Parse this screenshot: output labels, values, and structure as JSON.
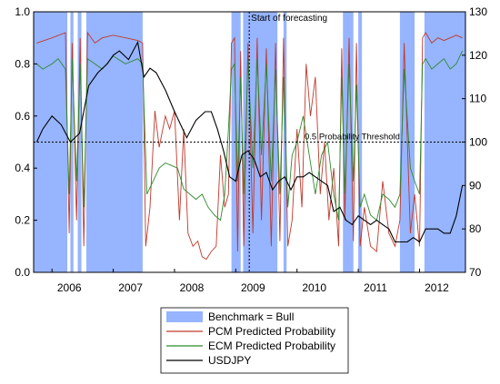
{
  "chart_data": {
    "type": "line",
    "left_axis": {
      "ylim": [
        0,
        1
      ],
      "ticks": [
        "0.0",
        "0.2",
        "0.4",
        "0.6",
        "0.8",
        "1.0"
      ]
    },
    "right_axis": {
      "ylim": [
        70,
        130
      ],
      "ticks": [
        "70",
        "80",
        "90",
        "100",
        "110",
        "120",
        "130"
      ]
    },
    "xlim": [
      2005.7,
      2012.75
    ],
    "x_ticks": [
      {
        "x": 2006.0,
        "label": "2006"
      },
      {
        "x": 2007.0,
        "label": "2007"
      },
      {
        "x": 2008.0,
        "label": "2008"
      },
      {
        "x": 2009.0,
        "label": "2009"
      },
      {
        "x": 2010.0,
        "label": "2010"
      },
      {
        "x": 2011.0,
        "label": "2011"
      },
      {
        "x": 2012.0,
        "label": "2012"
      }
    ],
    "annotations": [
      {
        "text": "Start of forecasting",
        "x": 2009.22
      },
      {
        "text": "0.5 Probability Threshold",
        "y": 0.5
      }
    ],
    "bull_periods": [
      [
        2005.7,
        2006.25
      ],
      [
        2006.3,
        2006.35
      ],
      [
        2006.42,
        2006.48
      ],
      [
        2006.56,
        2007.48
      ],
      [
        2008.93,
        2009.08
      ],
      [
        2009.12,
        2009.68
      ],
      [
        2009.78,
        2009.83
      ],
      [
        2010.75,
        2010.92
      ],
      [
        2011.0,
        2011.06
      ],
      [
        2011.68,
        2011.92
      ],
      [
        2012.08,
        2012.75
      ]
    ],
    "series": [
      {
        "name": "PCM Predicted Probability",
        "color": "#c0392b",
        "x": [
          2005.75,
          2006.0,
          2006.22,
          2006.28,
          2006.33,
          2006.4,
          2006.46,
          2006.52,
          2006.58,
          2006.7,
          2006.82,
          2007.0,
          2007.2,
          2007.4,
          2007.48,
          2007.53,
          2007.6,
          2007.68,
          2007.75,
          2007.85,
          2007.92,
          2008.0,
          2008.08,
          2008.15,
          2008.22,
          2008.3,
          2008.38,
          2008.45,
          2008.52,
          2008.6,
          2008.68,
          2008.75,
          2008.82,
          2008.88,
          2008.93,
          2008.98,
          2009.03,
          2009.08,
          2009.13,
          2009.2,
          2009.28,
          2009.35,
          2009.42,
          2009.5,
          2009.58,
          2009.65,
          2009.72,
          2009.78,
          2009.85,
          2009.92,
          2010.0,
          2010.08,
          2010.15,
          2010.22,
          2010.3,
          2010.38,
          2010.45,
          2010.52,
          2010.6,
          2010.68,
          2010.73,
          2010.78,
          2010.85,
          2010.92,
          2010.97,
          2011.03,
          2011.1,
          2011.2,
          2011.3,
          2011.4,
          2011.5,
          2011.6,
          2011.68,
          2011.75,
          2011.85,
          2011.92,
          2012.0,
          2012.05,
          2012.1,
          2012.2,
          2012.3,
          2012.4,
          2012.5,
          2012.6,
          2012.7
        ],
        "values": [
          0.88,
          0.9,
          0.92,
          0.15,
          0.88,
          0.2,
          0.9,
          0.1,
          0.92,
          0.88,
          0.9,
          0.91,
          0.9,
          0.89,
          0.88,
          0.1,
          0.25,
          0.62,
          0.48,
          0.6,
          0.55,
          0.62,
          0.2,
          0.55,
          0.15,
          0.1,
          0.12,
          0.06,
          0.05,
          0.08,
          0.1,
          0.45,
          0.25,
          0.3,
          0.88,
          0.9,
          0.08,
          0.85,
          0.1,
          0.88,
          0.15,
          0.9,
          0.2,
          0.86,
          0.1,
          0.88,
          0.12,
          0.9,
          0.1,
          0.2,
          0.55,
          0.25,
          0.8,
          0.6,
          0.75,
          0.3,
          0.5,
          0.2,
          0.4,
          0.1,
          0.86,
          0.2,
          0.9,
          0.12,
          0.88,
          0.1,
          0.25,
          0.1,
          0.08,
          0.35,
          0.15,
          0.1,
          0.2,
          0.88,
          0.15,
          0.3,
          0.1,
          0.9,
          0.92,
          0.88,
          0.9,
          0.89,
          0.9,
          0.91,
          0.9
        ]
      },
      {
        "name": "ECM Predicted Probability",
        "color": "#2e8b2e",
        "x": [
          2005.75,
          2005.85,
          2006.0,
          2006.1,
          2006.22,
          2006.28,
          2006.33,
          2006.4,
          2006.46,
          2006.52,
          2006.58,
          2006.7,
          2006.82,
          2007.0,
          2007.2,
          2007.4,
          2007.48,
          2007.55,
          2007.65,
          2007.75,
          2007.85,
          2007.95,
          2008.05,
          2008.15,
          2008.25,
          2008.35,
          2008.45,
          2008.55,
          2008.65,
          2008.75,
          2008.82,
          2008.88,
          2008.93,
          2008.98,
          2009.03,
          2009.08,
          2009.13,
          2009.2,
          2009.28,
          2009.35,
          2009.42,
          2009.5,
          2009.58,
          2009.65,
          2009.72,
          2009.78,
          2009.85,
          2009.92,
          2010.0,
          2010.1,
          2010.2,
          2010.3,
          2010.4,
          2010.5,
          2010.6,
          2010.68,
          2010.73,
          2010.78,
          2010.85,
          2010.92,
          2010.97,
          2011.03,
          2011.1,
          2011.2,
          2011.3,
          2011.4,
          2011.5,
          2011.6,
          2011.68,
          2011.75,
          2011.85,
          2011.92,
          2012.0,
          2012.05,
          2012.1,
          2012.2,
          2012.3,
          2012.4,
          2012.5,
          2012.6,
          2012.7
        ],
        "values": [
          0.8,
          0.78,
          0.8,
          0.82,
          0.78,
          0.3,
          0.82,
          0.35,
          0.8,
          0.25,
          0.82,
          0.8,
          0.78,
          0.83,
          0.8,
          0.82,
          0.8,
          0.3,
          0.35,
          0.4,
          0.42,
          0.41,
          0.4,
          0.32,
          0.3,
          0.28,
          0.3,
          0.25,
          0.22,
          0.2,
          0.3,
          0.55,
          0.78,
          0.8,
          0.35,
          0.75,
          0.3,
          0.82,
          0.4,
          0.82,
          0.45,
          0.8,
          0.35,
          0.78,
          0.3,
          0.75,
          0.25,
          0.45,
          0.5,
          0.6,
          0.45,
          0.3,
          0.45,
          0.5,
          0.3,
          0.2,
          0.75,
          0.3,
          0.8,
          0.35,
          0.72,
          0.25,
          0.3,
          0.22,
          0.2,
          0.3,
          0.28,
          0.25,
          0.3,
          0.78,
          0.4,
          0.35,
          0.3,
          0.8,
          0.82,
          0.78,
          0.8,
          0.82,
          0.78,
          0.8,
          0.85
        ]
      },
      {
        "name": "USDJPY",
        "color": "#000000",
        "axis": "right",
        "x": [
          2005.75,
          2005.85,
          2006.0,
          2006.15,
          2006.3,
          2006.45,
          2006.6,
          2006.75,
          2006.9,
          2007.0,
          2007.1,
          2007.25,
          2007.4,
          2007.5,
          2007.6,
          2007.7,
          2007.85,
          2008.0,
          2008.1,
          2008.2,
          2008.35,
          2008.5,
          2008.6,
          2008.7,
          2008.8,
          2008.9,
          2009.0,
          2009.1,
          2009.2,
          2009.3,
          2009.4,
          2009.5,
          2009.6,
          2009.7,
          2009.8,
          2009.9,
          2010.0,
          2010.1,
          2010.2,
          2010.3,
          2010.4,
          2010.5,
          2010.6,
          2010.7,
          2010.8,
          2010.9,
          2011.0,
          2011.1,
          2011.2,
          2011.3,
          2011.4,
          2011.5,
          2011.6,
          2011.7,
          2011.8,
          2011.9,
          2012.0,
          2012.1,
          2012.2,
          2012.3,
          2012.4,
          2012.5,
          2012.6,
          2012.7
        ],
        "values": [
          100,
          103,
          106,
          104,
          100,
          102,
          113,
          116,
          118,
          120,
          121,
          119,
          123,
          115,
          117,
          116,
          112,
          107,
          104,
          101,
          105,
          107,
          107,
          103,
          98,
          92,
          91,
          97,
          98,
          96,
          92,
          93,
          89,
          91,
          92,
          89,
          92,
          92,
          93,
          92,
          91,
          90,
          84,
          85,
          82,
          81,
          83,
          82,
          81,
          82,
          81,
          80,
          77,
          77,
          77,
          78,
          77,
          80,
          80,
          80,
          79,
          79,
          83,
          90
        ]
      }
    ],
    "legend": {
      "placement": "bottom",
      "items": [
        {
          "label": "Benchmark = Bull",
          "kind": "area",
          "color": "#96b4ff"
        },
        {
          "label": "PCM Predicted Probability",
          "kind": "line",
          "color": "#c0392b"
        },
        {
          "label": "ECM Predicted Probability",
          "kind": "line",
          "color": "#2e8b2e"
        },
        {
          "label": "USDJPY",
          "kind": "line",
          "color": "#000000"
        }
      ]
    }
  }
}
